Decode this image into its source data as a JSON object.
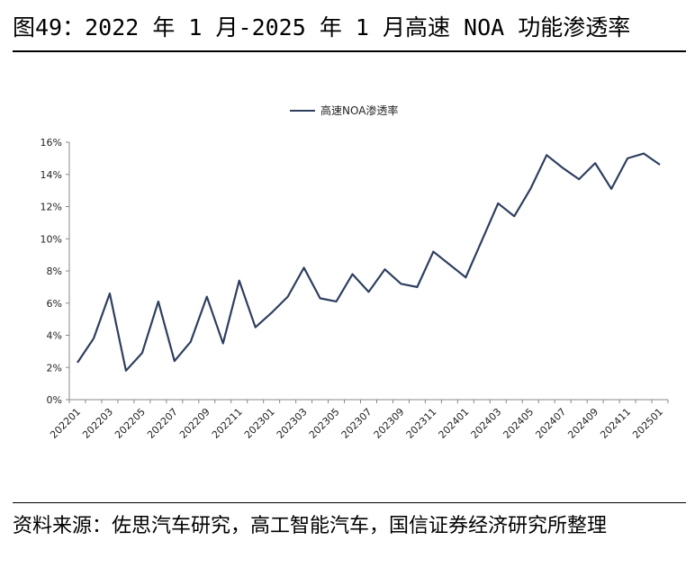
{
  "figure": {
    "title": "图49：2022 年 1 月-2025 年 1 月高速 NOA 功能渗透率",
    "source": "资料来源：佐思汽车研究，高工智能汽车，国信证券经济研究所整理"
  },
  "chart_data": {
    "type": "line",
    "title": "",
    "xlabel": "",
    "ylabel": "",
    "ylim": [
      0,
      16
    ],
    "yticks": [
      "0%",
      "2%",
      "4%",
      "6%",
      "8%",
      "10%",
      "12%",
      "14%",
      "16%"
    ],
    "legend_position": "top-center",
    "grid": false,
    "x": [
      "202201",
      "202202",
      "202203",
      "202204",
      "202205",
      "202206",
      "202207",
      "202208",
      "202209",
      "202210",
      "202211",
      "202212",
      "202301",
      "202302",
      "202303",
      "202304",
      "202305",
      "202306",
      "202307",
      "202308",
      "202309",
      "202310",
      "202311",
      "202312",
      "202401",
      "202402",
      "202403",
      "202404",
      "202405",
      "202406",
      "202407",
      "202408",
      "202409",
      "202410",
      "202411",
      "202412",
      "202501"
    ],
    "xtick_labels": [
      "202201",
      "202203",
      "202205",
      "202207",
      "202209",
      "202211",
      "202301",
      "202303",
      "202305",
      "202307",
      "202309",
      "202311",
      "202401",
      "202403",
      "202405",
      "202407",
      "202409",
      "202411",
      "202501"
    ],
    "series": [
      {
        "name": "高速NOA渗透率",
        "color": "#2E3F5F",
        "values": [
          2.3,
          3.8,
          6.6,
          1.8,
          2.9,
          6.1,
          2.4,
          3.6,
          6.4,
          3.5,
          7.4,
          4.5,
          5.4,
          6.4,
          8.2,
          6.3,
          6.1,
          7.8,
          6.7,
          8.1,
          7.2,
          7.0,
          9.2,
          8.4,
          7.6,
          9.9,
          12.2,
          11.4,
          13.1,
          15.2,
          14.4,
          13.7,
          14.7,
          13.1,
          15.0,
          15.3,
          14.6
        ]
      }
    ]
  }
}
